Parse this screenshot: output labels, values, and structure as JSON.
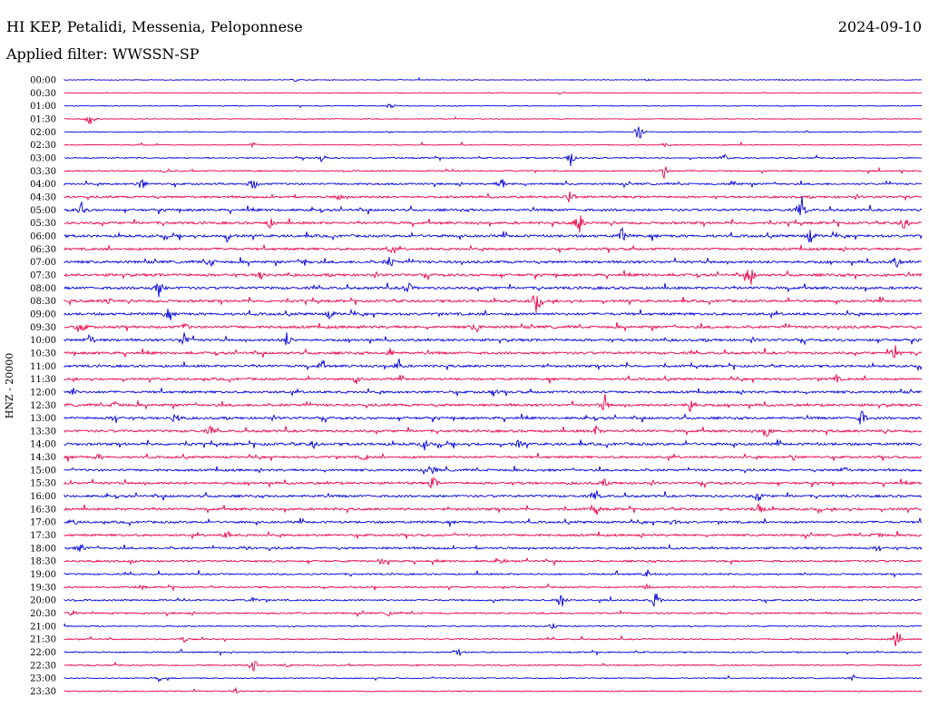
{
  "header": {
    "station": "HI KEP, Petalidi, Messenia, Peloponnese",
    "date": "2024-09-10",
    "filter": "Applied filter: WWSSN-SP"
  },
  "chart_data": {
    "type": "line",
    "ylabel": "HNZ - 20000",
    "series_colors": [
      "#0000dd",
      "#ee0044"
    ],
    "rows": [
      {
        "label": "00:00",
        "activity": 0.05,
        "events": [
          {
            "x": 0.27,
            "amp": 2
          },
          {
            "x": 0.68,
            "amp": 1
          }
        ]
      },
      {
        "label": "00:30",
        "activity": 0.05,
        "events": [
          {
            "x": 0.58,
            "amp": 3
          }
        ]
      },
      {
        "label": "01:00",
        "activity": 0.06,
        "events": [
          {
            "x": 0.38,
            "amp": 4
          }
        ]
      },
      {
        "label": "01:30",
        "activity": 0.08,
        "events": [
          {
            "x": 0.03,
            "amp": 10
          }
        ]
      },
      {
        "label": "02:00",
        "activity": 0.09,
        "events": [
          {
            "x": 0.67,
            "amp": 14
          }
        ]
      },
      {
        "label": "02:30",
        "activity": 0.12,
        "events": [
          {
            "x": 0.09,
            "amp": 3
          },
          {
            "x": 0.22,
            "amp": 3
          },
          {
            "x": 0.7,
            "amp": 3
          }
        ]
      },
      {
        "label": "03:00",
        "activity": 0.25,
        "events": [
          {
            "x": 0.3,
            "amp": 6
          },
          {
            "x": 0.59,
            "amp": 12
          },
          {
            "x": 0.77,
            "amp": 4
          }
        ]
      },
      {
        "label": "03:30",
        "activity": 0.3,
        "events": [
          {
            "x": 0.7,
            "amp": 10
          },
          {
            "x": 0.12,
            "amp": 3
          }
        ]
      },
      {
        "label": "04:00",
        "activity": 0.55,
        "events": [
          {
            "x": 0.09,
            "amp": 9
          },
          {
            "x": 0.22,
            "amp": 10
          },
          {
            "x": 0.51,
            "amp": 8
          },
          {
            "x": 0.78,
            "amp": 6
          }
        ]
      },
      {
        "label": "04:30",
        "activity": 0.65,
        "events": [
          {
            "x": 0.59,
            "amp": 12
          },
          {
            "x": 0.32,
            "amp": 5
          }
        ]
      },
      {
        "label": "05:00",
        "activity": 0.75,
        "events": [
          {
            "x": 0.02,
            "amp": 8
          },
          {
            "x": 0.86,
            "amp": 16
          }
        ]
      },
      {
        "label": "05:30",
        "activity": 0.8,
        "events": [
          {
            "x": 0.24,
            "amp": 6
          },
          {
            "x": 0.6,
            "amp": 18
          },
          {
            "x": 0.98,
            "amp": 10
          }
        ]
      },
      {
        "label": "06:00",
        "activity": 0.85,
        "events": [
          {
            "x": 0.19,
            "amp": 7
          },
          {
            "x": 0.65,
            "amp": 10
          },
          {
            "x": 0.87,
            "amp": 9
          }
        ]
      },
      {
        "label": "06:30",
        "activity": 0.75,
        "events": [
          {
            "x": 0.38,
            "amp": 5
          }
        ]
      },
      {
        "label": "07:00",
        "activity": 0.85,
        "events": [
          {
            "x": 0.17,
            "amp": 8
          },
          {
            "x": 0.28,
            "amp": 6
          },
          {
            "x": 0.38,
            "amp": 8
          },
          {
            "x": 0.97,
            "amp": 8
          }
        ]
      },
      {
        "label": "07:30",
        "activity": 0.85,
        "events": [
          {
            "x": 0.23,
            "amp": 6
          },
          {
            "x": 0.8,
            "amp": 16
          }
        ]
      },
      {
        "label": "08:00",
        "activity": 0.85,
        "events": [
          {
            "x": 0.11,
            "amp": 12
          },
          {
            "x": 0.4,
            "amp": 10
          }
        ]
      },
      {
        "label": "08:30",
        "activity": 0.8,
        "events": [
          {
            "x": 0.55,
            "amp": 14
          },
          {
            "x": 0.05,
            "amp": 5
          }
        ]
      },
      {
        "label": "09:00",
        "activity": 0.85,
        "events": [
          {
            "x": 0.12,
            "amp": 6
          },
          {
            "x": 0.31,
            "amp": 6
          }
        ]
      },
      {
        "label": "09:30",
        "activity": 0.85,
        "events": [
          {
            "x": 0.02,
            "amp": 8
          },
          {
            "x": 0.48,
            "amp": 8
          },
          {
            "x": 0.14,
            "amp": 5
          }
        ]
      },
      {
        "label": "10:00",
        "activity": 0.8,
        "events": [
          {
            "x": 0.03,
            "amp": 9
          },
          {
            "x": 0.14,
            "amp": 12
          },
          {
            "x": 0.26,
            "amp": 10
          }
        ]
      },
      {
        "label": "10:30",
        "activity": 0.8,
        "events": [
          {
            "x": 0.97,
            "amp": 14
          },
          {
            "x": 0.38,
            "amp": 5
          }
        ]
      },
      {
        "label": "11:00",
        "activity": 0.75,
        "events": [
          {
            "x": 0.39,
            "amp": 9
          },
          {
            "x": 0.3,
            "amp": 5
          }
        ]
      },
      {
        "label": "11:30",
        "activity": 0.7,
        "events": [
          {
            "x": 0.34,
            "amp": 5
          },
          {
            "x": 0.9,
            "amp": 5
          }
        ]
      },
      {
        "label": "12:00",
        "activity": 0.75,
        "events": [
          {
            "x": 0.01,
            "amp": 5
          },
          {
            "x": 0.5,
            "amp": 5
          }
        ]
      },
      {
        "label": "12:30",
        "activity": 0.8,
        "events": [
          {
            "x": 0.06,
            "amp": 6
          },
          {
            "x": 0.63,
            "amp": 10
          },
          {
            "x": 0.73,
            "amp": 12
          }
        ]
      },
      {
        "label": "13:00",
        "activity": 0.75,
        "events": [
          {
            "x": 0.06,
            "amp": 6
          },
          {
            "x": 0.13,
            "amp": 9
          },
          {
            "x": 0.93,
            "amp": 12
          }
        ]
      },
      {
        "label": "13:30",
        "activity": 0.8,
        "events": [
          {
            "x": 0.17,
            "amp": 5
          },
          {
            "x": 0.62,
            "amp": 6
          },
          {
            "x": 0.82,
            "amp": 10
          }
        ]
      },
      {
        "label": "14:00",
        "activity": 0.85,
        "events": [
          {
            "x": 0.29,
            "amp": 5
          },
          {
            "x": 0.42,
            "amp": 6
          },
          {
            "x": 0.53,
            "amp": 5
          }
        ]
      },
      {
        "label": "14:30",
        "activity": 0.7,
        "events": [
          {
            "x": 0.04,
            "amp": 4
          },
          {
            "x": 0.35,
            "amp": 5
          },
          {
            "x": 0.85,
            "amp": 4
          }
        ]
      },
      {
        "label": "15:00",
        "activity": 0.7,
        "events": [
          {
            "x": 0.43,
            "amp": 5
          },
          {
            "x": 0.91,
            "amp": 5
          }
        ]
      },
      {
        "label": "15:30",
        "activity": 0.75,
        "events": [
          {
            "x": 0.43,
            "amp": 10
          },
          {
            "x": 0.63,
            "amp": 4
          }
        ]
      },
      {
        "label": "16:00",
        "activity": 0.75,
        "events": [
          {
            "x": 0.62,
            "amp": 6
          },
          {
            "x": 0.81,
            "amp": 7
          }
        ]
      },
      {
        "label": "16:30",
        "activity": 0.75,
        "events": [
          {
            "x": 0.62,
            "amp": 7
          },
          {
            "x": 0.81,
            "amp": 12
          }
        ]
      },
      {
        "label": "17:00",
        "activity": 0.7,
        "events": [
          {
            "x": 0.01,
            "amp": 5
          },
          {
            "x": 0.71,
            "amp": 5
          }
        ]
      },
      {
        "label": "17:30",
        "activity": 0.65,
        "events": [
          {
            "x": 0.19,
            "amp": 5
          },
          {
            "x": 0.95,
            "amp": 5
          }
        ]
      },
      {
        "label": "18:00",
        "activity": 0.65,
        "events": [
          {
            "x": 0.02,
            "amp": 6
          },
          {
            "x": 0.21,
            "amp": 4
          },
          {
            "x": 0.95,
            "amp": 5
          }
        ]
      },
      {
        "label": "18:30",
        "activity": 0.55,
        "events": [
          {
            "x": 0.37,
            "amp": 5
          },
          {
            "x": 0.51,
            "amp": 4
          }
        ]
      },
      {
        "label": "19:00",
        "activity": 0.45,
        "events": [
          {
            "x": 0.68,
            "amp": 5
          }
        ]
      },
      {
        "label": "19:30",
        "activity": 0.4,
        "events": [
          {
            "x": 0.68,
            "amp": 4
          },
          {
            "x": 0.09,
            "amp": 3
          }
        ]
      },
      {
        "label": "20:00",
        "activity": 0.4,
        "events": [
          {
            "x": 0.58,
            "amp": 14
          },
          {
            "x": 0.69,
            "amp": 14
          },
          {
            "x": 0.22,
            "amp": 4
          }
        ]
      },
      {
        "label": "20:30",
        "activity": 0.45,
        "events": [
          {
            "x": 0.01,
            "amp": 5
          },
          {
            "x": 0.38,
            "amp": 4
          }
        ]
      },
      {
        "label": "21:00",
        "activity": 0.25,
        "events": [
          {
            "x": 0.57,
            "amp": 4
          }
        ]
      },
      {
        "label": "21:30",
        "activity": 0.3,
        "events": [
          {
            "x": 0.14,
            "amp": 4
          },
          {
            "x": 0.97,
            "amp": 14
          }
        ]
      },
      {
        "label": "22:00",
        "activity": 0.3,
        "events": [
          {
            "x": 0.46,
            "amp": 3
          }
        ]
      },
      {
        "label": "22:30",
        "activity": 0.25,
        "events": [
          {
            "x": 0.22,
            "amp": 12
          },
          {
            "x": 0.26,
            "amp": 3
          }
        ]
      },
      {
        "label": "23:00",
        "activity": 0.2,
        "events": [
          {
            "x": 0.92,
            "amp": 4
          },
          {
            "x": 0.11,
            "amp": 3
          }
        ]
      },
      {
        "label": "23:30",
        "activity": 0.2,
        "events": [
          {
            "x": 0.2,
            "amp": 3
          }
        ]
      }
    ]
  }
}
